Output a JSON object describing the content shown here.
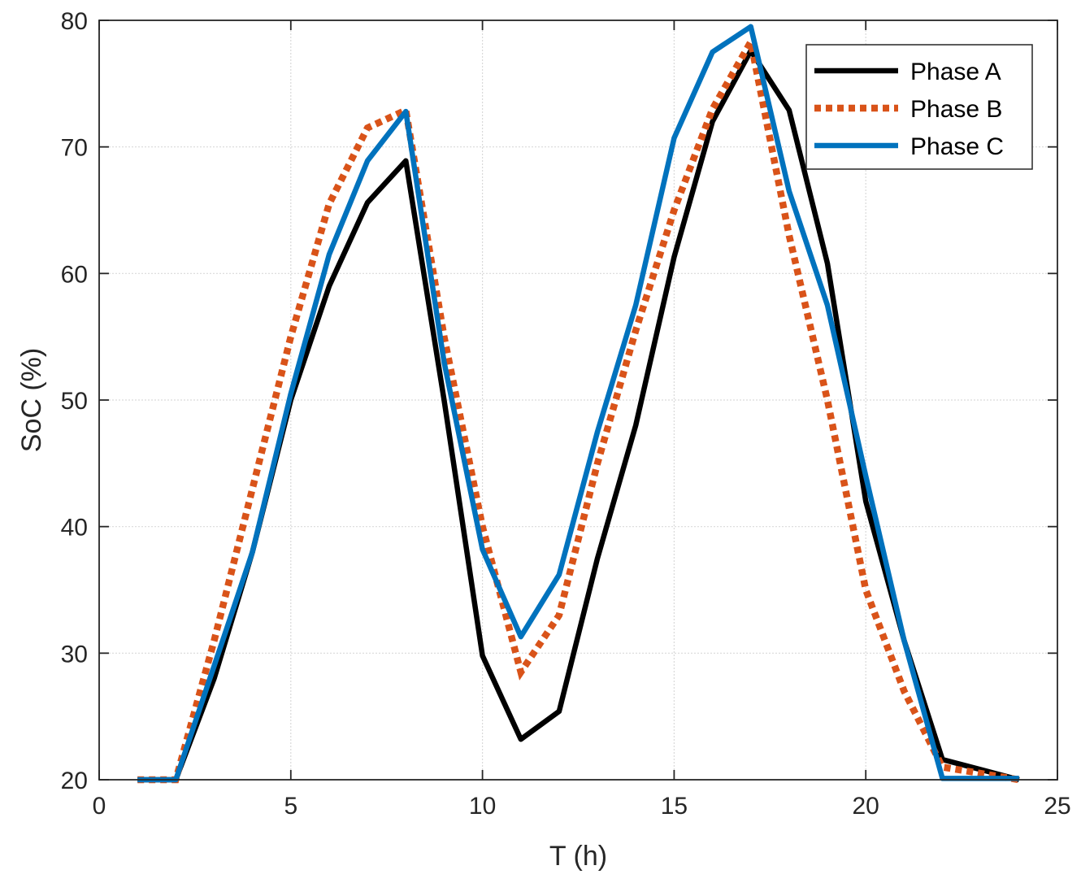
{
  "chart_data": {
    "type": "line",
    "title": "",
    "xlabel": "T (h)",
    "ylabel": "SoC (%)",
    "xlim": [
      0,
      25
    ],
    "ylim": [
      20,
      80
    ],
    "xticks": [
      0,
      5,
      10,
      15,
      20,
      25
    ],
    "yticks": [
      20,
      30,
      40,
      50,
      60,
      70,
      80
    ],
    "grid": true,
    "legend_position": "top-right",
    "x": [
      1,
      2,
      3,
      4,
      5,
      6,
      7,
      8,
      9,
      10,
      11,
      12,
      13,
      14,
      15,
      16,
      17,
      18,
      19,
      20,
      21,
      22,
      23,
      24
    ],
    "series": [
      {
        "name": "Phase A",
        "color": "#000000",
        "dash": "solid",
        "values": [
          20,
          20,
          28,
          38,
          50,
          59,
          65.6,
          68.9,
          50,
          29.8,
          23.2,
          25.4,
          37.5,
          48,
          61.3,
          72,
          77.6,
          72.9,
          60.8,
          42,
          31,
          21.6,
          20.8,
          20
        ]
      },
      {
        "name": "Phase B",
        "color": "#D95319",
        "dash": "dotted",
        "values": [
          20,
          20,
          31,
          43,
          55,
          65.5,
          71.5,
          72.9,
          55,
          40,
          28.5,
          33,
          45,
          55.5,
          65,
          73,
          78.3,
          63,
          50,
          35,
          27,
          21,
          20.5,
          20
        ]
      },
      {
        "name": "Phase C",
        "color": "#0072BD",
        "dash": "solid",
        "values": [
          20,
          20,
          29,
          38,
          50.5,
          61.5,
          68.9,
          72.8,
          53,
          38.2,
          31.3,
          36.2,
          47.5,
          57.5,
          70.7,
          77.5,
          79.5,
          66.5,
          57.5,
          44,
          31,
          20.1,
          20.1,
          20.1
        ]
      }
    ]
  }
}
